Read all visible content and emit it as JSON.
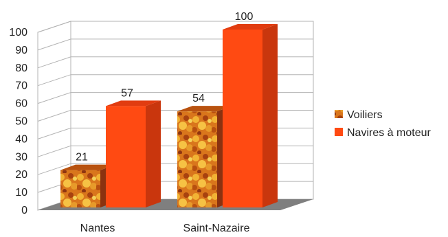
{
  "chart_data": {
    "type": "bar",
    "title": "",
    "xlabel": "",
    "ylabel": "",
    "categories": [
      "Nantes",
      "Saint-Nazaire"
    ],
    "series": [
      {
        "name": "Voiliers",
        "values": [
          21,
          54
        ],
        "color": "#e07a1c",
        "fill": "autumn-leaves-texture"
      },
      {
        "name": "Navires à moteur",
        "values": [
          57,
          100
        ],
        "color": "#ff4a12",
        "fill": "solid"
      }
    ],
    "ylim": [
      0,
      100
    ],
    "yticks": [
      "0",
      "10",
      "20",
      "30",
      "40",
      "50",
      "60",
      "70",
      "80",
      "90",
      "100"
    ],
    "grid": true,
    "legend_position": "right",
    "style": "3d"
  }
}
